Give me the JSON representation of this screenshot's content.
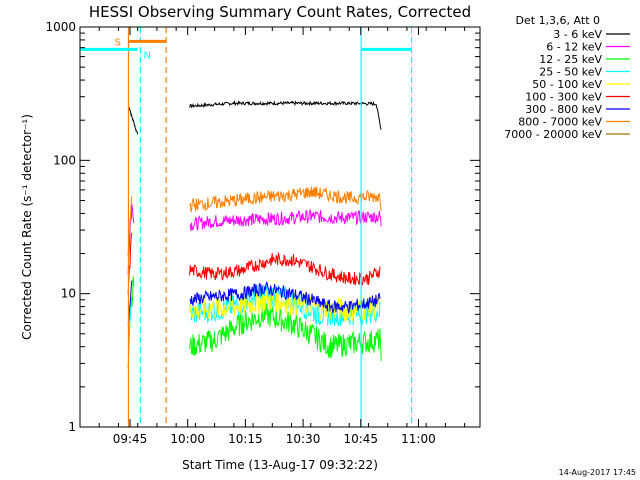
{
  "chart_data": {
    "type": "line",
    "title": "HESSI Observing Summary Count Rates, Corrected",
    "xlabel": "Start Time (13-Aug-17 09:32:22)",
    "ylabel": "Corrected Count Rate (s⁻¹ detector⁻¹)",
    "y_scale": "log",
    "ylim": [
      1,
      1000
    ],
    "xlim_minutes_after_0932": [
      0,
      104
    ],
    "x_tick_labels": [
      "09:45",
      "10:00",
      "10:15",
      "10:30",
      "10:45",
      "11:00"
    ],
    "x_ticks_minutes_after_0932": [
      13,
      28,
      43,
      58,
      73,
      88
    ],
    "y_tick_labels": [
      "1",
      "10",
      "100",
      "1000"
    ],
    "y_ticks": [
      1,
      10,
      100,
      1000
    ],
    "grid": false,
    "legend_placement": "outside-top-right",
    "legend_header": "Det 1,3,6, Att 0",
    "series": [
      {
        "name": "3 - 6 keV",
        "color": "#000000",
        "points": [
          [
            12.5,
            260
          ],
          [
            13.0,
            240
          ],
          [
            13.3,
            220
          ],
          [
            13.8,
            200
          ],
          [
            14.2,
            185
          ],
          [
            14.5,
            170
          ],
          [
            15.0,
            160
          ],
          [
            28.5,
            255
          ],
          [
            40,
            268
          ],
          [
            55,
            268
          ],
          [
            70,
            268
          ],
          [
            77,
            265
          ],
          [
            78.3,
            170
          ]
        ]
      },
      {
        "name": "6 - 12 keV",
        "color": "#ff00ff",
        "points": [
          [
            12.5,
            15
          ],
          [
            13.0,
            30
          ],
          [
            13.5,
            45
          ],
          [
            14.0,
            38
          ],
          [
            28.5,
            33
          ],
          [
            35,
            35
          ],
          [
            45,
            36
          ],
          [
            55,
            37
          ],
          [
            60,
            38
          ],
          [
            70,
            37
          ],
          [
            78,
            38
          ],
          [
            78.3,
            33
          ]
        ]
      },
      {
        "name": "12 - 25 keV",
        "color": "#00ff00",
        "points": [
          [
            12.5,
            3
          ],
          [
            13.0,
            8
          ],
          [
            14.0,
            12
          ],
          [
            28.5,
            4
          ],
          [
            35,
            4.5
          ],
          [
            42,
            6
          ],
          [
            48,
            7
          ],
          [
            55,
            6
          ],
          [
            60,
            5
          ],
          [
            65,
            4
          ],
          [
            70,
            4.2
          ],
          [
            78,
            4.5
          ],
          [
            78.3,
            3.8
          ]
        ]
      },
      {
        "name": "25 - 50 keV",
        "color": "#00ffff",
        "points": [
          [
            12.5,
            5
          ],
          [
            13.5,
            10
          ],
          [
            28.5,
            7
          ],
          [
            40,
            8
          ],
          [
            48,
            10
          ],
          [
            55,
            9
          ],
          [
            62,
            7
          ],
          [
            70,
            7
          ],
          [
            78,
            7.5
          ]
        ]
      },
      {
        "name": "50 - 100 keV",
        "color": "#ffff00",
        "points": [
          [
            28.5,
            7.5
          ],
          [
            40,
            8
          ],
          [
            50,
            9
          ],
          [
            60,
            8
          ],
          [
            70,
            7.5
          ],
          [
            78,
            8
          ]
        ]
      },
      {
        "name": "100 - 300 keV",
        "color": "#ff0000",
        "points": [
          [
            12.5,
            10
          ],
          [
            13.5,
            30
          ],
          [
            28.5,
            15
          ],
          [
            35,
            14
          ],
          [
            42,
            15
          ],
          [
            50,
            18
          ],
          [
            55,
            18
          ],
          [
            60,
            16
          ],
          [
            65,
            14
          ],
          [
            70,
            13
          ],
          [
            75,
            13
          ],
          [
            78,
            15
          ]
        ]
      },
      {
        "name": "300 - 800 keV",
        "color": "#0000ff",
        "points": [
          [
            12.5,
            6
          ],
          [
            13.5,
            12
          ],
          [
            28.5,
            9
          ],
          [
            35,
            9.5
          ],
          [
            42,
            10
          ],
          [
            48,
            11
          ],
          [
            55,
            10
          ],
          [
            60,
            9
          ],
          [
            65,
            8
          ],
          [
            70,
            8
          ],
          [
            75,
            8.5
          ],
          [
            78,
            9
          ]
        ]
      },
      {
        "name": "800 - 7000 keV",
        "color": "#ff8000",
        "points": [
          [
            12.5,
            20
          ],
          [
            13.5,
            55
          ],
          [
            28.5,
            46
          ],
          [
            35,
            48
          ],
          [
            45,
            52
          ],
          [
            55,
            55
          ],
          [
            60,
            58
          ],
          [
            65,
            55
          ],
          [
            70,
            52
          ],
          [
            78,
            54
          ],
          [
            78.3,
            46
          ]
        ]
      },
      {
        "name": "7000 - 20000 keV",
        "color": "#a07800",
        "points": []
      }
    ],
    "markers": [
      {
        "kind": "vline",
        "x": 12.6,
        "color": "#ff8000",
        "dashed": false
      },
      {
        "kind": "vline",
        "x": 15.7,
        "color": "#00ffff",
        "dashed": true
      },
      {
        "kind": "vline",
        "x": 22.4,
        "color": "#ff8000",
        "dashed": true
      },
      {
        "kind": "vline",
        "x": 73.1,
        "color": "#00ffff",
        "dashed": false
      },
      {
        "kind": "vline",
        "x": 86.2,
        "color": "#00ffff",
        "dashed": true
      },
      {
        "kind": "hbar",
        "x1": 0,
        "x2": 15.0,
        "y": 680,
        "color": "#00ffff",
        "label": ""
      },
      {
        "kind": "hbar",
        "x1": 12.6,
        "x2": 22.4,
        "y": 780,
        "color": "#ff8000",
        "label": ""
      },
      {
        "kind": "hbar",
        "x1": 73.1,
        "x2": 86.2,
        "y": 680,
        "color": "#00ffff",
        "label": ""
      }
    ],
    "marker_labels": [
      {
        "text": "S",
        "x": 9.0,
        "y": 780,
        "color": "#ff8000"
      },
      {
        "text": "N",
        "x": 16.5,
        "y": 620,
        "color": "#00ffff"
      }
    ]
  },
  "footer": {
    "timestamp": "14-Aug-2017 17:45"
  }
}
